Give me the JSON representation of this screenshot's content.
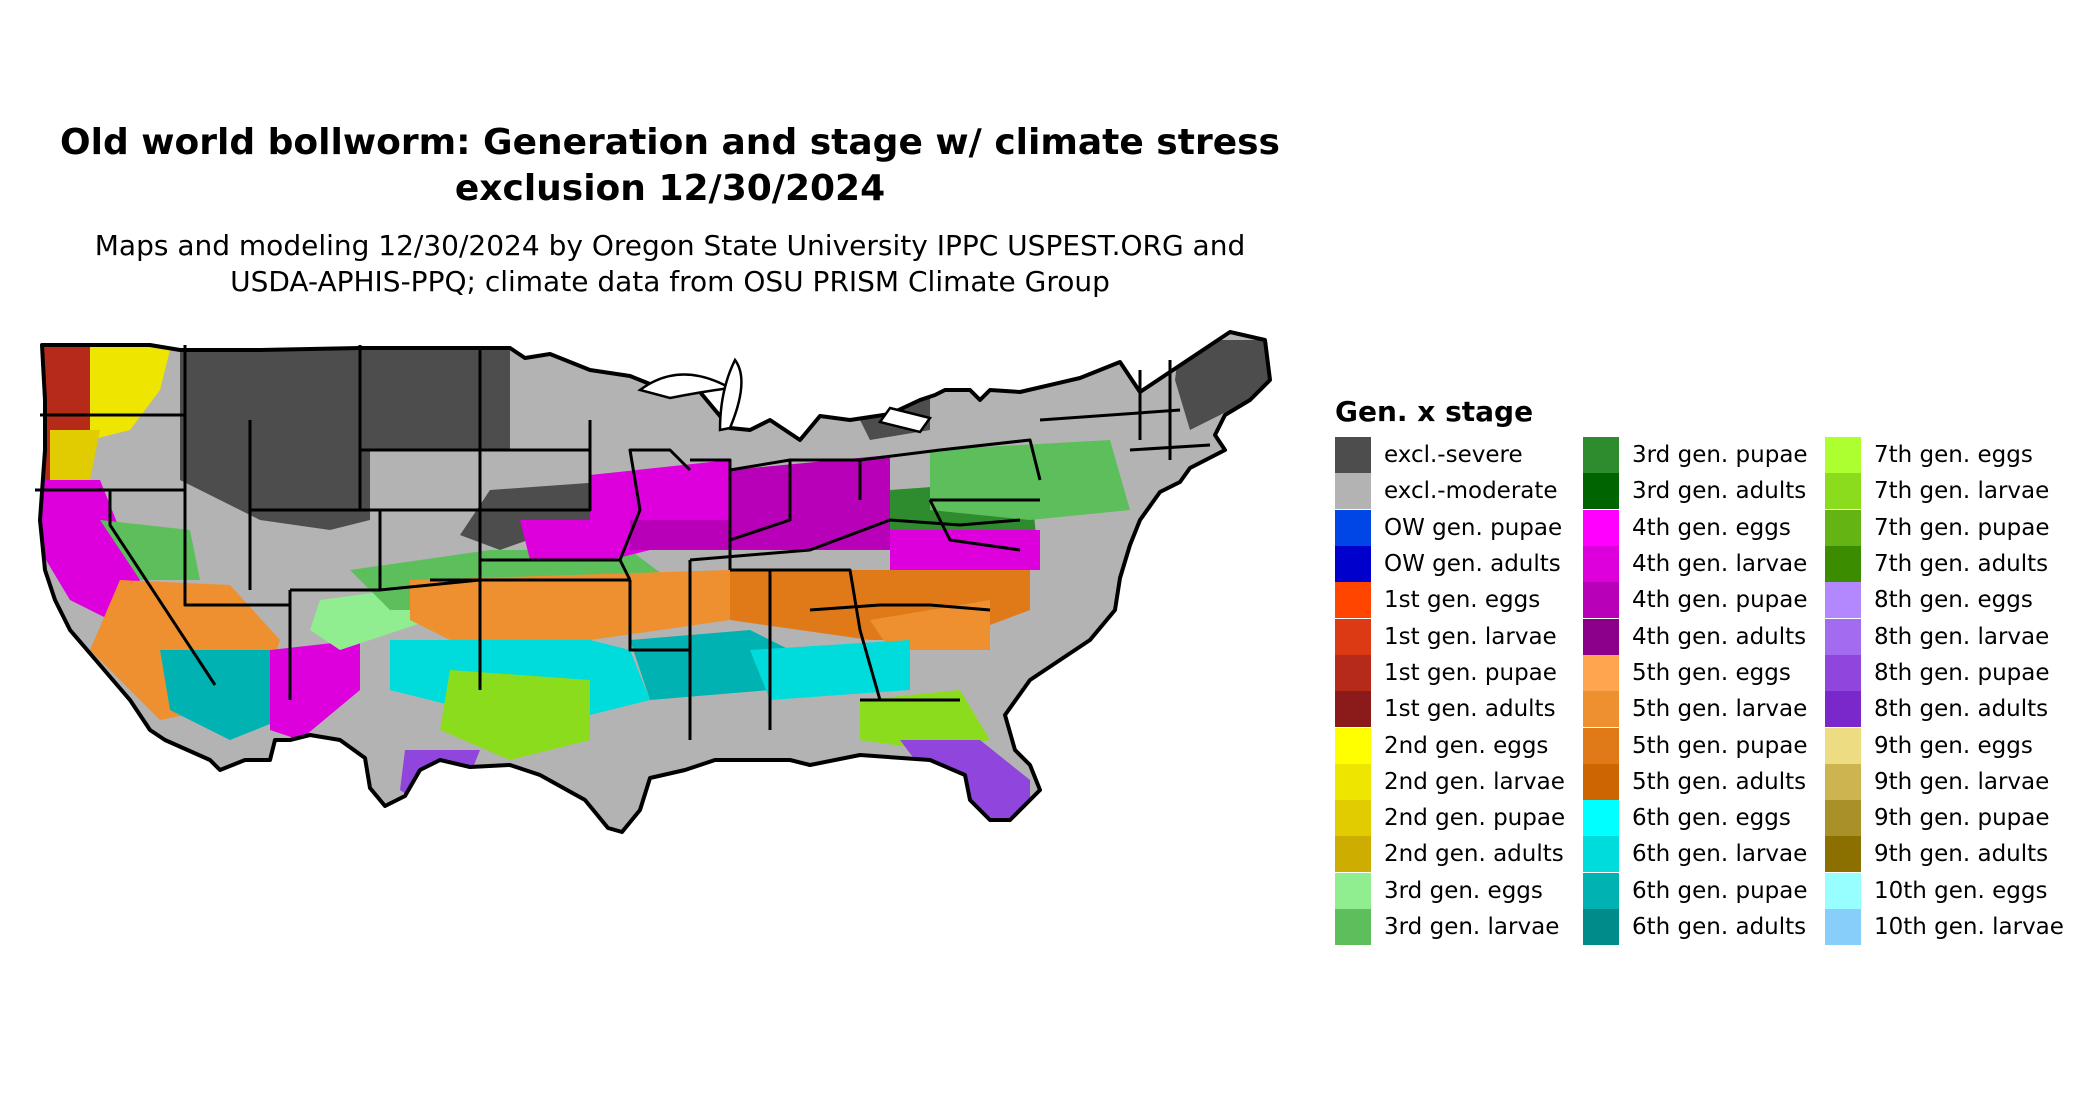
{
  "title_line1": "Old world bollworm: Generation and stage w/ climate stress",
  "title_line2": "exclusion 12/30/2024",
  "subtitle_line1": "Maps and modeling 12/30/2024 by Oregon State University IPPC USPEST.ORG and",
  "subtitle_line2": "USDA-APHIS-PPQ; climate data from OSU PRISM Climate Group",
  "legend": {
    "title": "Gen. x stage",
    "items": [
      {
        "label": "excl.-severe",
        "color": "#4d4d4d"
      },
      {
        "label": "excl.-moderate",
        "color": "#b3b3b3"
      },
      {
        "label": "OW gen. pupae",
        "color": "#0046e6"
      },
      {
        "label": "OW gen. adults",
        "color": "#0000cd"
      },
      {
        "label": "1st gen. eggs",
        "color": "#ff4500"
      },
      {
        "label": "1st gen. larvae",
        "color": "#dc3a14"
      },
      {
        "label": "1st gen. pupae",
        "color": "#b52a18"
      },
      {
        "label": "1st gen. adults",
        "color": "#8b1a1a"
      },
      {
        "label": "2nd gen. eggs",
        "color": "#ffff00"
      },
      {
        "label": "2nd gen. larvae",
        "color": "#eee600"
      },
      {
        "label": "2nd gen. pupae",
        "color": "#e0cc00"
      },
      {
        "label": "2nd gen. adults",
        "color": "#cdad00"
      },
      {
        "label": "3rd gen. eggs",
        "color": "#90ee90"
      },
      {
        "label": "3rd gen. larvae",
        "color": "#5cbf5c"
      },
      {
        "label": "3rd gen. pupae",
        "color": "#2e8b2e"
      },
      {
        "label": "3rd gen. adults",
        "color": "#006400"
      },
      {
        "label": "4th gen. eggs",
        "color": "#ff00ff"
      },
      {
        "label": "4th gen. larvae",
        "color": "#dd00dd"
      },
      {
        "label": "4th gen. pupae",
        "color": "#b800b8"
      },
      {
        "label": "4th gen. adults",
        "color": "#8b008b"
      },
      {
        "label": "5th gen. eggs",
        "color": "#ffa54f"
      },
      {
        "label": "5th gen. larvae",
        "color": "#ee9030"
      },
      {
        "label": "5th gen. pupae",
        "color": "#e07a18"
      },
      {
        "label": "5th gen. adults",
        "color": "#cd6600"
      },
      {
        "label": "6th gen. eggs",
        "color": "#00ffff"
      },
      {
        "label": "6th gen. larvae",
        "color": "#00dcdc"
      },
      {
        "label": "6th gen. pupae",
        "color": "#00b2b2"
      },
      {
        "label": "6th gen. adults",
        "color": "#008b8b"
      },
      {
        "label": "7th gen. eggs",
        "color": "#adff2f"
      },
      {
        "label": "7th gen. larvae",
        "color": "#8cdc1e"
      },
      {
        "label": "7th gen. pupae",
        "color": "#64b414"
      },
      {
        "label": "7th gen. adults",
        "color": "#3c8c00"
      },
      {
        "label": "8th gen. eggs",
        "color": "#b388ff"
      },
      {
        "label": "8th gen. larvae",
        "color": "#a36bf0"
      },
      {
        "label": "8th gen. pupae",
        "color": "#9046dd"
      },
      {
        "label": "8th gen. adults",
        "color": "#7a28cc"
      },
      {
        "label": "9th gen. eggs",
        "color": "#eedc82"
      },
      {
        "label": "9th gen. larvae",
        "color": "#cdb450"
      },
      {
        "label": "9th gen. pupae",
        "color": "#aa9028"
      },
      {
        "label": "9th gen. adults",
        "color": "#8b7000"
      },
      {
        "label": "10th gen. eggs",
        "color": "#97ffff"
      },
      {
        "label": "10th gen. larvae",
        "color": "#87cefa"
      }
    ]
  }
}
